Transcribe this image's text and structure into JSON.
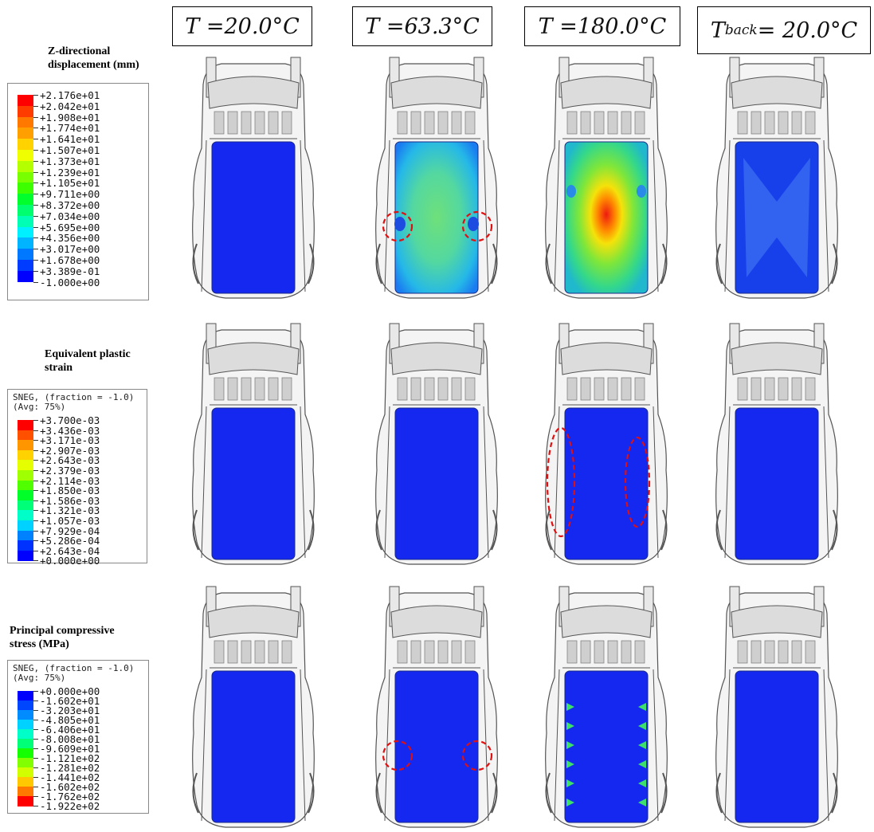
{
  "columns": [
    {
      "prefix": "T = ",
      "sub": "",
      "value": "20.0°C"
    },
    {
      "prefix": "T = ",
      "sub": "",
      "value": "63.3°C"
    },
    {
      "prefix": "T = ",
      "sub": "",
      "value": "180.0°C"
    },
    {
      "prefix": "T",
      "sub": "back",
      "value": " = 20.0°C"
    }
  ],
  "rows": [
    {
      "title_line1": "Z-directional",
      "title_line2": "displacement (mm)",
      "legend_header": [],
      "legend_values": [
        "+2.176e+01",
        "+2.042e+01",
        "+1.908e+01",
        "+1.774e+01",
        "+1.641e+01",
        "+1.507e+01",
        "+1.373e+01",
        "+1.239e+01",
        "+1.105e+01",
        "+9.711e+00",
        "+8.372e+00",
        "+7.034e+00",
        "+5.695e+00",
        "+4.356e+00",
        "+3.017e+00",
        "+1.678e+00",
        "+3.389e-01",
        "-1.000e+00"
      ],
      "legend_colors": [
        "#ff0000",
        "#ff3c00",
        "#ff7800",
        "#ffa000",
        "#ffd200",
        "#f0ff00",
        "#b4ff00",
        "#78ff00",
        "#3cff00",
        "#00ff2c",
        "#00ff6e",
        "#00ffb4",
        "#00f0ff",
        "#00b4ff",
        "#0078ff",
        "#003cff",
        "#0000ff"
      ]
    },
    {
      "title_line1": "Equivalent plastic",
      "title_line2": "strain",
      "legend_header": [
        "SNEG, (fraction = -1.0)",
        "(Avg: 75%)"
      ],
      "legend_values": [
        "+3.700e-03",
        "+3.436e-03",
        "+3.171e-03",
        "+2.907e-03",
        "+2.643e-03",
        "+2.379e-03",
        "+2.114e-03",
        "+1.850e-03",
        "+1.586e-03",
        "+1.321e-03",
        "+1.057e-03",
        "+7.929e-04",
        "+5.286e-04",
        "+2.643e-04",
        "+0.000e+00"
      ],
      "legend_colors": [
        "#ff0000",
        "#ff5000",
        "#ff9600",
        "#ffd200",
        "#e6ff00",
        "#a0ff00",
        "#50ff00",
        "#00ff28",
        "#00ff78",
        "#00ffc8",
        "#00d2ff",
        "#0082ff",
        "#0032ff",
        "#0000ff"
      ]
    },
    {
      "title_line1": "Principal compressive",
      "title_line2": "stress (MPa)",
      "legend_header": [
        "SNEG, (fraction = -1.0)",
        "(Avg: 75%)"
      ],
      "legend_values": [
        "+0.000e+00",
        "-1.602e+01",
        "-3.203e+01",
        "-4.805e+01",
        "-6.406e+01",
        "-8.008e+01",
        "-9.609e+01",
        "-1.121e+02",
        "-1.281e+02",
        "-1.441e+02",
        "-1.602e+02",
        "-1.762e+02",
        "-1.922e+02"
      ],
      "legend_colors": [
        "#0000ff",
        "#0046ff",
        "#008cff",
        "#00d2ff",
        "#00ffc8",
        "#00ff78",
        "#14ff00",
        "#82ff00",
        "#d2ff00",
        "#ffc800",
        "#ff7800",
        "#ff0000"
      ]
    }
  ],
  "cells": [
    [
      {
        "roof": "uniform-deep-blue",
        "markers": []
      },
      {
        "roof": "cyan-green-bulge",
        "markers": [
          "circle-left",
          "circle-right"
        ]
      },
      {
        "roof": "green-yellow-red-center",
        "markers": []
      },
      {
        "roof": "blue-x-pattern",
        "markers": []
      }
    ],
    [
      {
        "roof": "uniform-deep-blue",
        "markers": []
      },
      {
        "roof": "uniform-deep-blue",
        "markers": []
      },
      {
        "roof": "uniform-deep-blue",
        "markers": [
          "ellipse-left",
          "ellipse-right"
        ]
      },
      {
        "roof": "uniform-deep-blue",
        "markers": []
      }
    ],
    [
      {
        "roof": "uniform-deep-blue",
        "markers": []
      },
      {
        "roof": "uniform-deep-blue",
        "markers": [
          "circle-left",
          "circle-right"
        ]
      },
      {
        "roof": "blue-with-edge-hotspots",
        "markers": []
      },
      {
        "roof": "uniform-deep-blue",
        "markers": []
      }
    ]
  ],
  "colors": {
    "roof_blue": "#1428f0",
    "marker_red": "#e01010",
    "body_line": "#555555"
  }
}
